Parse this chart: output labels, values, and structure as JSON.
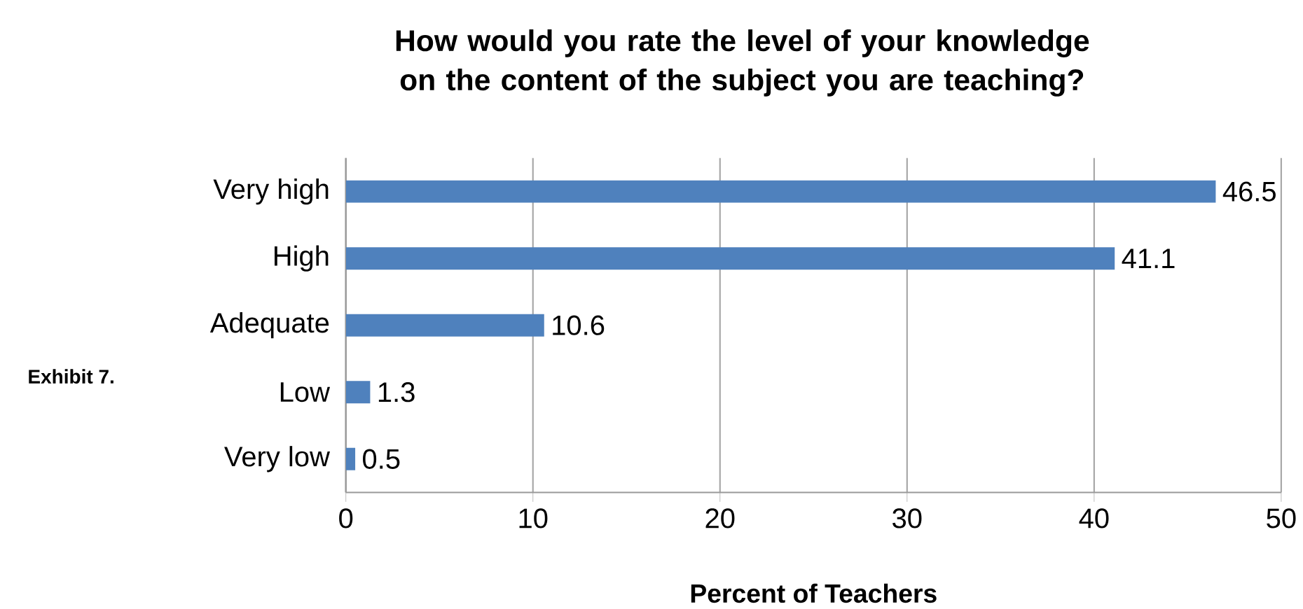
{
  "chart_data": {
    "type": "bar",
    "orientation": "horizontal",
    "title": "How would you rate the level of your knowledge on the content of the subject you are teaching?",
    "xlabel": "Percent of Teachers",
    "annotations": [
      "Exhibit 7."
    ],
    "categories": [
      "Very high",
      "High",
      "Adequate",
      "Low",
      "Very low"
    ],
    "values": [
      46.5,
      41.1,
      10.6,
      1.3,
      0.5
    ],
    "color": "#4f81bd",
    "data_labels": true,
    "xlim": [
      0,
      50
    ],
    "xticks": [
      0,
      10,
      20,
      30,
      40,
      50
    ],
    "grid": "x"
  }
}
